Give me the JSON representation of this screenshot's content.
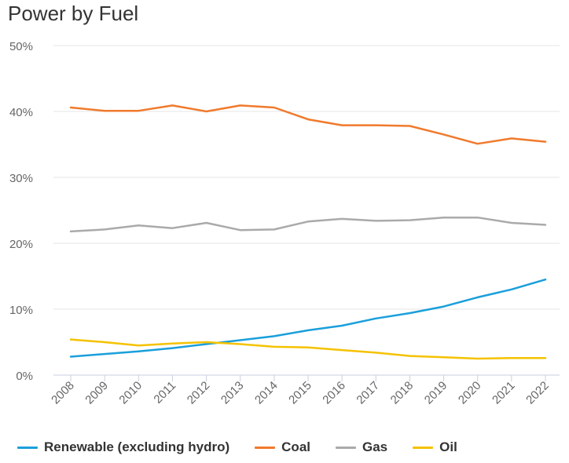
{
  "chart_data": {
    "type": "line",
    "title": "Power by Fuel",
    "xlabel": "",
    "ylabel": "",
    "x": [
      "2008",
      "2009",
      "2010",
      "2011",
      "2012",
      "2013",
      "2014",
      "2015",
      "2016",
      "2017",
      "2018",
      "2019",
      "2020",
      "2021",
      "2022"
    ],
    "yticks": [
      "0%",
      "10%",
      "20%",
      "30%",
      "40%",
      "50%"
    ],
    "ylim": [
      0,
      50
    ],
    "grid": true,
    "legend_position": "bottom",
    "series": [
      {
        "name": "Renewable (excluding hydro)",
        "color": "#1a9fdb",
        "values": [
          2.8,
          3.2,
          3.6,
          4.1,
          4.7,
          5.3,
          5.9,
          6.8,
          7.5,
          8.6,
          9.4,
          10.4,
          11.8,
          13.0,
          14.5
        ]
      },
      {
        "name": "Coal",
        "color": "#f07a2c",
        "values": [
          40.6,
          40.1,
          40.1,
          40.9,
          40.0,
          40.9,
          40.6,
          38.8,
          37.9,
          37.9,
          37.8,
          36.5,
          35.1,
          35.9,
          35.4
        ]
      },
      {
        "name": "Gas",
        "color": "#aaaaaa",
        "values": [
          21.8,
          22.1,
          22.7,
          22.3,
          23.1,
          22.0,
          22.1,
          23.3,
          23.7,
          23.4,
          23.5,
          23.9,
          23.9,
          23.1,
          22.8
        ]
      },
      {
        "name": "Oil",
        "color": "#f5c200",
        "values": [
          5.4,
          5.0,
          4.5,
          4.8,
          5.0,
          4.7,
          4.3,
          4.2,
          3.8,
          3.4,
          2.9,
          2.7,
          2.5,
          2.6,
          2.6
        ]
      }
    ]
  }
}
